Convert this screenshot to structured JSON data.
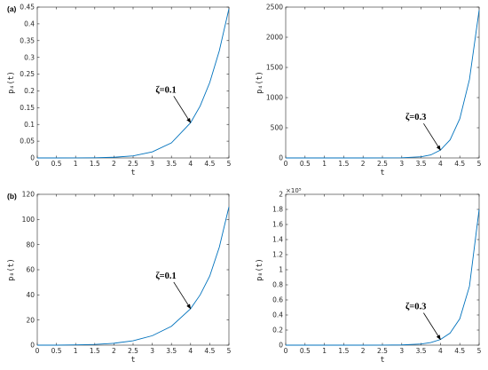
{
  "chart_data": [
    {
      "type": "line",
      "panel_label": "(a)",
      "xlabel": "t",
      "ylabel": "p₄(t)",
      "xlim": [
        0,
        5
      ],
      "ylim": [
        0,
        0.45
      ],
      "xticks": [
        "0",
        "0.5",
        "1",
        "1.5",
        "2",
        "2.5",
        "3",
        "3.5",
        "4",
        "4.5",
        "5"
      ],
      "yticks": [
        "0",
        "0.05",
        "0.1",
        "0.15",
        "0.2",
        "0.25",
        "0.3",
        "0.35",
        "0.4",
        "0.45"
      ],
      "ytick_values": [
        0,
        0.05,
        0.1,
        0.15,
        0.2,
        0.25,
        0.3,
        0.35,
        0.4,
        0.45
      ],
      "exponent_label": "",
      "annotation": {
        "text": "ζ=0.1",
        "x": 4,
        "y": 0.105
      },
      "series": [
        {
          "color": "#0072bd",
          "x": [
            0,
            0.5,
            1,
            1.5,
            2,
            2.5,
            3,
            3.5,
            4,
            4.25,
            4.5,
            4.75,
            5
          ],
          "y": [
            0,
            0,
            0.0001,
            0.0005,
            0.002,
            0.006,
            0.018,
            0.045,
            0.105,
            0.155,
            0.225,
            0.32,
            0.445
          ]
        }
      ],
      "grid": false
    },
    {
      "type": "line",
      "panel_label": "",
      "xlabel": "t",
      "ylabel": "p₄(t)",
      "xlim": [
        0,
        5
      ],
      "ylim": [
        0,
        2500
      ],
      "xticks": [
        "0",
        "0.5",
        "1",
        "1.5",
        "2",
        "2.5",
        "3",
        "3.5",
        "4",
        "4.5",
        "5"
      ],
      "yticks": [
        "0",
        "500",
        "1000",
        "1500",
        "2000",
        "2500"
      ],
      "ytick_values": [
        0,
        500,
        1000,
        1500,
        2000,
        2500
      ],
      "exponent_label": "",
      "annotation": {
        "text": "ζ=0.3",
        "x": 4,
        "y": 130
      },
      "series": [
        {
          "color": "#0072bd",
          "x": [
            0,
            1,
            2,
            2.5,
            3,
            3.5,
            3.75,
            4,
            4.25,
            4.5,
            4.75,
            5
          ],
          "y": [
            0,
            0,
            0,
            0.5,
            3,
            20,
            50,
            130,
            300,
            650,
            1300,
            2450
          ]
        }
      ],
      "grid": false
    },
    {
      "type": "line",
      "panel_label": "(b)",
      "xlabel": "t",
      "ylabel": "p₈(t)",
      "xlim": [
        0,
        5
      ],
      "ylim": [
        0,
        120
      ],
      "xticks": [
        "0",
        "0.5",
        "1",
        "1.5",
        "2",
        "2.5",
        "3",
        "3.5",
        "4",
        "4.5",
        "5"
      ],
      "yticks": [
        "0",
        "20",
        "40",
        "60",
        "80",
        "100",
        "120"
      ],
      "ytick_values": [
        0,
        20,
        40,
        60,
        80,
        100,
        120
      ],
      "exponent_label": "",
      "annotation": {
        "text": "ζ=0.1",
        "x": 4,
        "y": 29
      },
      "series": [
        {
          "color": "#0072bd",
          "x": [
            0,
            0.5,
            1,
            1.5,
            2,
            2.5,
            3,
            3.5,
            4,
            4.25,
            4.5,
            4.75,
            5
          ],
          "y": [
            0,
            0,
            0.2,
            0.6,
            1.5,
            3.5,
            7.5,
            15,
            29,
            40,
            55,
            78,
            110
          ]
        }
      ],
      "grid": false
    },
    {
      "type": "line",
      "panel_label": "",
      "xlabel": "t",
      "ylabel": "p₈(t)",
      "xlim": [
        0,
        5
      ],
      "ylim": [
        0,
        2
      ],
      "xticks": [
        "0",
        "0.5",
        "1",
        "1.5",
        "2",
        "2.5",
        "3",
        "3.5",
        "4",
        "4.5",
        "5"
      ],
      "yticks": [
        "0",
        "0.2",
        "0.4",
        "0.6",
        "0.8",
        "1",
        "1.2",
        "1.4",
        "1.6",
        "1.8",
        "2"
      ],
      "ytick_values": [
        0,
        0.2,
        0.4,
        0.6,
        0.8,
        1,
        1.2,
        1.4,
        1.6,
        1.8,
        2
      ],
      "exponent_label": "×10⁵",
      "annotation": {
        "text": "ζ=0.3",
        "x": 4,
        "y": 0.075
      },
      "series": [
        {
          "color": "#0072bd",
          "x": [
            0,
            1,
            2,
            2.5,
            3,
            3.5,
            3.75,
            4,
            4.25,
            4.5,
            4.75,
            5
          ],
          "y": [
            0,
            0,
            0,
            0.0005,
            0.003,
            0.015,
            0.035,
            0.075,
            0.16,
            0.35,
            0.78,
            1.8
          ]
        }
      ],
      "grid": false
    }
  ]
}
